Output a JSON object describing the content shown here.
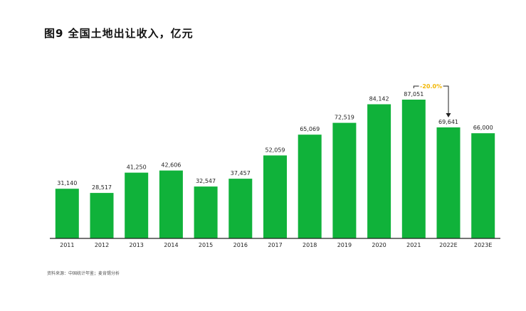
{
  "title": "图9 全国土地出让收入，亿元",
  "source_note": "资料来源：中国统计年鉴；麦肯锡分析",
  "colors": {
    "bar": "#10b23a",
    "axis": "#222222",
    "annotation": "#f2b705",
    "text": "#222222"
  },
  "chart_data": {
    "type": "bar",
    "title": "全国土地出让收入，亿元",
    "xlabel": "",
    "ylabel": "",
    "categories": [
      "2011",
      "2012",
      "2013",
      "2014",
      "2015",
      "2016",
      "2017",
      "2018",
      "2019",
      "2020",
      "2021",
      "2022E",
      "2023E"
    ],
    "values": [
      31140,
      28517,
      41250,
      42606,
      32547,
      37457,
      52059,
      65069,
      72519,
      84142,
      87051,
      69641,
      66000
    ],
    "value_labels": [
      "31,140",
      "28,517",
      "41,250",
      "42,606",
      "32,547",
      "37,457",
      "52,059",
      "65,069",
      "72,519",
      "84,142",
      "87,051",
      "69,641",
      "66,000"
    ],
    "ylim": [
      0,
      110000
    ],
    "grid": false,
    "legend": "none",
    "annotation": {
      "text": "-20.0%",
      "from_category": "2021",
      "to_category": "2022E"
    }
  }
}
